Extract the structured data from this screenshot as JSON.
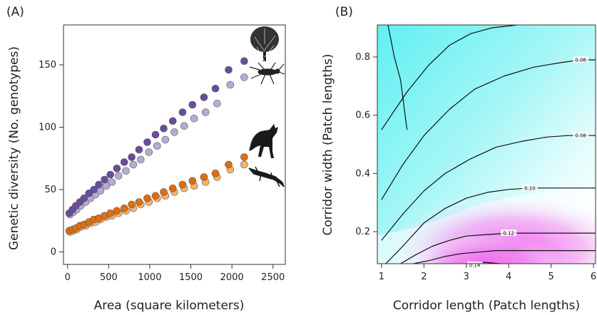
{
  "chart_data": [
    {
      "type": "scatter",
      "panel_label": "(A)",
      "xlabel": "Area (square kilometers)",
      "ylabel": "Genetic diversity (No. genotypes)",
      "xlim": [
        -50,
        2650
      ],
      "ylim": [
        -10,
        182
      ],
      "xticks": [
        "0",
        "500",
        "1000",
        "1500",
        "2000",
        "2500"
      ],
      "yticks": [
        "0",
        "50",
        "100",
        "150"
      ],
      "grid": false,
      "icons": [
        "tree-silhouette-icon",
        "insect-silhouette-icon",
        "fox-silhouette-icon",
        "lizard-silhouette-icon"
      ],
      "series": [
        {
          "color": "#6a4c9c",
          "x": [
            20,
            60,
            100,
            150,
            200,
            260,
            320,
            380,
            450,
            520,
            600,
            690,
            780,
            870,
            970,
            1070,
            1170,
            1280,
            1400,
            1520,
            1660,
            1800,
            1960,
            2150
          ],
          "y": [
            31,
            34,
            37,
            40,
            43,
            47,
            50,
            54,
            58,
            62,
            67,
            72,
            76,
            82,
            88,
            94,
            99,
            105,
            112,
            118,
            124,
            131,
            146,
            153
          ]
        },
        {
          "color": "#b4acd6",
          "x": [
            30,
            70,
            110,
            160,
            220,
            280,
            340,
            400,
            470,
            540,
            620,
            710,
            800,
            890,
            990,
            1090,
            1190,
            1300,
            1420,
            1540,
            1680,
            1820,
            1980,
            2150
          ],
          "y": [
            30,
            32,
            34,
            37,
            40,
            43,
            46,
            49,
            53,
            56,
            61,
            65,
            70,
            74,
            80,
            85,
            90,
            96,
            101,
            107,
            112,
            119,
            134,
            140
          ]
        },
        {
          "color": "#e06d10",
          "x": [
            20,
            60,
            100,
            150,
            200,
            260,
            320,
            380,
            450,
            520,
            600,
            690,
            780,
            870,
            970,
            1070,
            1170,
            1280,
            1400,
            1520,
            1660,
            1800,
            1960,
            2150
          ],
          "y": [
            17,
            18,
            19,
            21,
            22,
            24,
            26,
            27,
            29,
            31,
            33,
            35,
            38,
            40,
            43,
            45,
            48,
            51,
            54,
            57,
            60,
            63,
            70,
            76
          ]
        },
        {
          "color": "#f6b26b",
          "x": [
            30,
            70,
            110,
            160,
            220,
            280,
            340,
            400,
            470,
            540,
            620,
            710,
            800,
            890,
            990,
            1090,
            1190,
            1300,
            1420,
            1540,
            1680,
            1820,
            1980,
            2150
          ],
          "y": [
            16,
            17,
            18,
            20,
            21,
            23,
            24,
            26,
            28,
            29,
            31,
            33,
            35,
            38,
            40,
            43,
            45,
            48,
            51,
            53,
            56,
            60,
            66,
            70
          ]
        }
      ]
    },
    {
      "type": "heatmap",
      "panel_label": "(B)",
      "xlabel": "Corridor length (Patch lengths)",
      "ylabel": "Corridor width (Patch lengths)",
      "xlim": [
        0.9,
        6.05
      ],
      "ylim": [
        0.09,
        0.91
      ],
      "xticks": [
        "1",
        "2",
        "3",
        "4",
        "5",
        "6"
      ],
      "yticks": [
        "0.2",
        "0.4",
        "0.6",
        "0.8"
      ],
      "colors": {
        "low": "#5ff0f2",
        "mid": "#ffffff",
        "high": "#f060f0"
      },
      "contour_labels": [
        "0.06",
        "0.08",
        "0.10",
        "0.12",
        "0.14"
      ],
      "contour_label_positions": [
        {
          "x": 5.7,
          "y": 0.79
        },
        {
          "x": 5.7,
          "y": 0.53
        },
        {
          "x": 4.5,
          "y": 0.35
        },
        {
          "x": 4.0,
          "y": 0.195
        },
        {
          "x": 3.2,
          "y": 0.085
        }
      ],
      "contours": [
        {
          "x": [
            1.15,
            1.3,
            1.45,
            1.6
          ],
          "y": [
            0.91,
            0.8,
            0.72,
            0.55
          ]
        },
        {
          "x": [
            1.0,
            1.6,
            2.1,
            2.6,
            3.1,
            3.6,
            4.2
          ],
          "y": [
            0.55,
            0.68,
            0.77,
            0.84,
            0.88,
            0.9,
            0.91
          ]
        },
        {
          "x": [
            1.0,
            1.5,
            2.0,
            2.6,
            3.2,
            3.9,
            4.6,
            5.2,
            5.7,
            6.05
          ],
          "y": [
            0.31,
            0.43,
            0.53,
            0.62,
            0.69,
            0.735,
            0.765,
            0.78,
            0.79,
            0.79
          ]
        },
        {
          "x": [
            1.0,
            1.5,
            2.0,
            2.5,
            3.1,
            3.7,
            4.3,
            4.9,
            5.4,
            5.8,
            6.05
          ],
          "y": [
            0.17,
            0.26,
            0.34,
            0.4,
            0.45,
            0.49,
            0.51,
            0.525,
            0.53,
            0.53,
            0.53
          ]
        },
        {
          "x": [
            1.1,
            1.5,
            2.0,
            2.5,
            3.0,
            3.5,
            4.0,
            4.5,
            5.0,
            5.5,
            6.05
          ],
          "y": [
            0.09,
            0.15,
            0.23,
            0.28,
            0.315,
            0.335,
            0.345,
            0.35,
            0.35,
            0.35,
            0.35
          ]
        },
        {
          "x": [
            1.45,
            1.8,
            2.2,
            2.6,
            3.0,
            3.5,
            4.0,
            4.5,
            5.0,
            5.5,
            6.05
          ],
          "y": [
            0.09,
            0.12,
            0.15,
            0.17,
            0.185,
            0.19,
            0.195,
            0.195,
            0.195,
            0.195,
            0.195
          ]
        },
        {
          "x": [
            1.75,
            2.1,
            2.5,
            2.9,
            3.3,
            3.7,
            4.2,
            4.7,
            5.2,
            5.7,
            6.05
          ],
          "y": [
            0.09,
            0.1,
            0.115,
            0.125,
            0.13,
            0.135,
            0.135,
            0.135,
            0.135,
            0.135,
            0.135
          ]
        },
        {
          "x": [
            3.0,
            3.4,
            3.8
          ],
          "y": [
            0.09,
            0.095,
            0.09
          ]
        }
      ]
    }
  ]
}
